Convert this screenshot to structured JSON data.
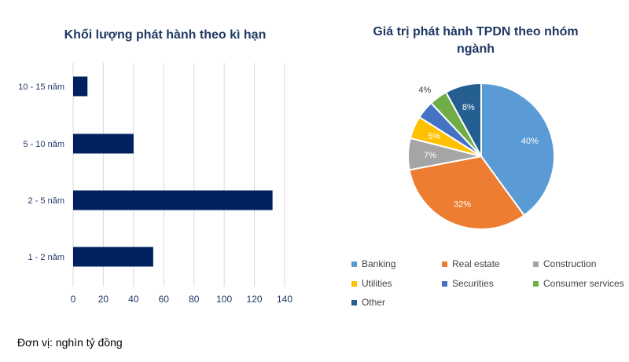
{
  "footer": {
    "unit": "Đơn vị: nghìn tỷ đồng"
  },
  "chart_data": [
    {
      "type": "bar",
      "orientation": "horizontal",
      "title": "Khối lượng phát hành theo kì hạn",
      "categories": [
        "10 - 15 năm",
        "5 - 10 năm",
        "2 - 5 năm",
        "1 - 2 năm"
      ],
      "values": [
        9.5,
        40,
        132,
        53
      ],
      "xlim": [
        0,
        140
      ],
      "xticks": [
        0,
        20,
        40,
        60,
        80,
        100,
        120,
        140
      ],
      "grid": true,
      "color": "#002060",
      "xlabel": "",
      "ylabel": ""
    },
    {
      "type": "pie",
      "title": "Giá trị phát hành TPDN theo nhóm ngành",
      "labels": [
        "Banking",
        "Real estate",
        "Construction",
        "Utilities",
        "Securities",
        "Consumer services",
        "Other"
      ],
      "values": [
        40,
        32,
        7,
        5,
        4,
        4,
        8
      ],
      "data_labels": [
        "40%",
        "32%",
        "7%",
        "5%",
        "",
        "4%",
        "8%"
      ],
      "colors": [
        "#5b9bd5",
        "#ed7d31",
        "#a5a5a5",
        "#ffc000",
        "#4472c4",
        "#70ad47",
        "#255e91"
      ],
      "legend": "bottom"
    }
  ]
}
